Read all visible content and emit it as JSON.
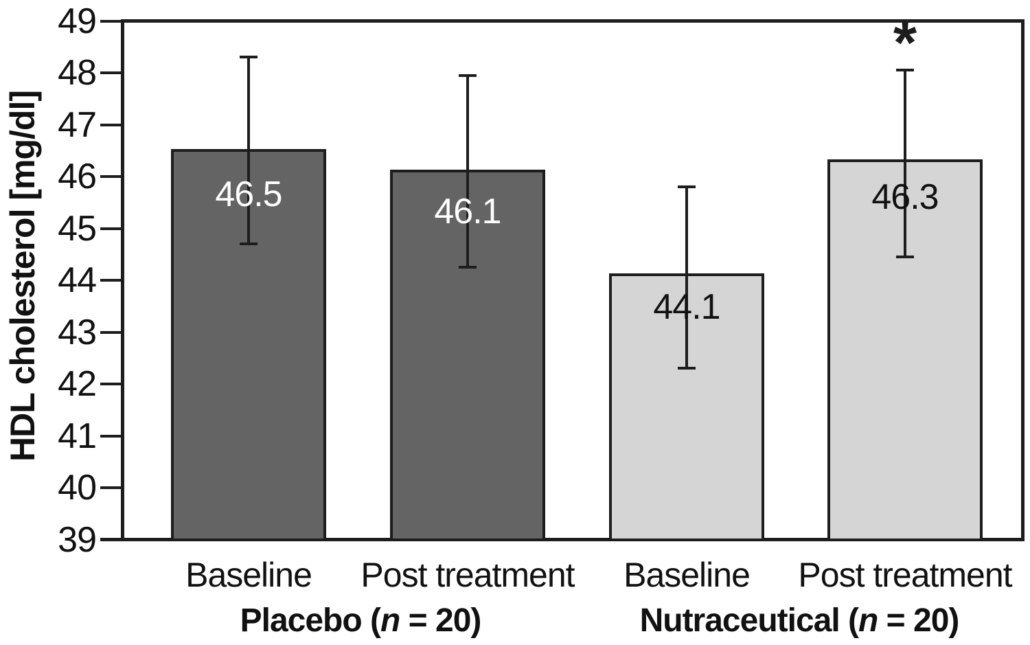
{
  "chart_data": {
    "type": "bar",
    "title": "",
    "ylabel": "HDL cholesterol [mg/dl]",
    "xlabel": "",
    "ylim": [
      39,
      49
    ],
    "yticks": [
      39,
      40,
      41,
      42,
      43,
      44,
      45,
      46,
      47,
      48,
      49
    ],
    "grid": false,
    "legend_position": "none",
    "bars": [
      {
        "category": "Baseline",
        "group": "Placebo",
        "value": 46.5,
        "error_upper": 48.3,
        "error_lower": 44.7,
        "fill": "#646464",
        "label_color": "#ffffff",
        "significance": ""
      },
      {
        "category": "Post treatment",
        "group": "Placebo",
        "value": 46.1,
        "error_upper": 47.95,
        "error_lower": 44.25,
        "fill": "#646464",
        "label_color": "#ffffff",
        "significance": ""
      },
      {
        "category": "Baseline",
        "group": "Nutraceutical",
        "value": 44.1,
        "error_upper": 45.8,
        "error_lower": 42.3,
        "fill": "#d5d5d5",
        "label_color": "#111111",
        "significance": ""
      },
      {
        "category": "Post treatment",
        "group": "Nutraceutical",
        "value": 46.3,
        "error_upper": 48.05,
        "error_lower": 44.45,
        "fill": "#d5d5d5",
        "label_color": "#111111",
        "significance": "*"
      }
    ],
    "group_labels": [
      {
        "pre": "Placebo (",
        "n": "n",
        "post": " = 20)"
      },
      {
        "pre": "Nutraceutical (",
        "n": "n",
        "post": " = 20)"
      }
    ],
    "colors": {
      "dark_bar": "#646464",
      "light_bar": "#d5d5d5",
      "axis": "#1d1d1d",
      "text": "#111111",
      "background": "#ffffff"
    }
  }
}
